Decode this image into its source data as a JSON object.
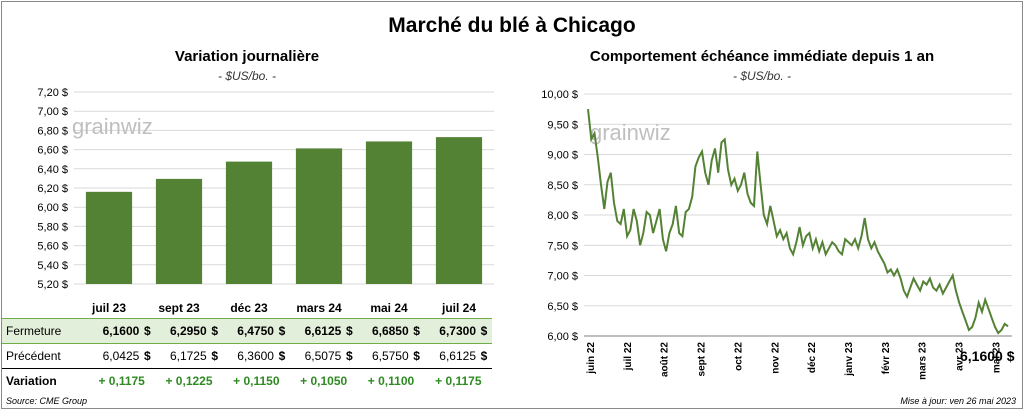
{
  "title": "Marché du blé à Chicago",
  "left": {
    "title": "Variation journalière",
    "subtitle": "- $US/bo. -",
    "watermark": "grainwiz",
    "table": {
      "row_labels": {
        "close": "Fermeture",
        "prev": "Précédent",
        "var": "Variation"
      },
      "currency": "$",
      "columns": [
        {
          "close": "6,1600",
          "prev": "6,0425",
          "var": "+ 0,1175"
        },
        {
          "close": "6,2950",
          "prev": "6,1725",
          "var": "+ 0,1225"
        },
        {
          "close": "6,4750",
          "prev": "6,3600",
          "var": "+ 0,1150"
        },
        {
          "close": "6,6125",
          "prev": "6,5075",
          "var": "+ 0,1050"
        },
        {
          "close": "6,6850",
          "prev": "6,5750",
          "var": "+ 0,1100"
        },
        {
          "close": "6,7300",
          "prev": "6,6125",
          "var": "+ 0,1175"
        }
      ]
    }
  },
  "right": {
    "title": "Comportement  échéance immédiate depuis 1 an",
    "subtitle": "- $US/bo. -",
    "watermark": "grainwiz",
    "last_value_label": "6,1600 $"
  },
  "footer": {
    "source": "Source: CME Group",
    "updated": "Mise à jour: ven 26 mai 2023"
  },
  "colors": {
    "bar": "#548235",
    "line": "#548235",
    "grid": "#d9d9d9",
    "highlight_row": "#e2efda"
  },
  "chart_data": [
    {
      "type": "bar",
      "title": "Variation journalière",
      "subtitle": "- $US/bo. -",
      "categories": [
        "juil 23",
        "sept 23",
        "déc 23",
        "mars 24",
        "mai 24",
        "juil 24"
      ],
      "values": [
        6.16,
        6.295,
        6.475,
        6.6125,
        6.685,
        6.73
      ],
      "ylim": [
        5.2,
        7.2
      ],
      "yticks": [
        "5,20 $",
        "5,40 $",
        "5,60 $",
        "5,80 $",
        "6,00 $",
        "6,20 $",
        "6,40 $",
        "6,60 $",
        "6,80 $",
        "7,00 $",
        "7,20 $"
      ],
      "grid": true
    },
    {
      "type": "line",
      "title": "Comportement  échéance immédiate depuis 1 an",
      "subtitle": "- $US/bo. -",
      "ylim": [
        6.0,
        10.0
      ],
      "yticks": [
        "6,00 $",
        "6,50 $",
        "7,00 $",
        "7,50 $",
        "8,00 $",
        "8,50 $",
        "9,00 $",
        "9,50 $",
        "10,00 $"
      ],
      "xticks": [
        "juin 22",
        "juil 22",
        "août 22",
        "sept 22",
        "oct 22",
        "nov 22",
        "déc 22",
        "janv 23",
        "févr 23",
        "mars 23",
        "avr 23",
        "mai 23"
      ],
      "values": [
        9.75,
        9.25,
        9.35,
        8.95,
        8.5,
        8.1,
        8.55,
        8.7,
        8.2,
        7.9,
        7.85,
        8.1,
        7.65,
        7.75,
        8.1,
        7.9,
        7.5,
        7.7,
        8.05,
        8.0,
        7.7,
        7.9,
        8.1,
        7.6,
        7.4,
        7.7,
        7.85,
        8.15,
        7.7,
        7.65,
        8.05,
        8.1,
        8.3,
        8.8,
        8.95,
        9.05,
        8.7,
        8.5,
        8.9,
        9.1,
        8.7,
        9.2,
        9.25,
        8.75,
        8.5,
        8.6,
        8.4,
        8.5,
        8.7,
        8.35,
        8.2,
        8.15,
        9.05,
        8.5,
        8.0,
        7.85,
        8.15,
        7.9,
        7.65,
        7.75,
        7.6,
        7.7,
        7.45,
        7.35,
        7.55,
        7.8,
        7.5,
        7.65,
        7.7,
        7.45,
        7.6,
        7.4,
        7.55,
        7.35,
        7.45,
        7.55,
        7.5,
        7.4,
        7.35,
        7.6,
        7.55,
        7.5,
        7.6,
        7.45,
        7.65,
        7.95,
        7.6,
        7.45,
        7.55,
        7.4,
        7.3,
        7.2,
        7.05,
        7.1,
        7.0,
        7.1,
        6.95,
        6.75,
        6.65,
        6.8,
        6.95,
        6.85,
        6.75,
        6.9,
        6.85,
        6.95,
        6.8,
        6.75,
        6.85,
        6.7,
        6.8,
        6.9,
        7.0,
        6.75,
        6.55,
        6.4,
        6.25,
        6.1,
        6.15,
        6.3,
        6.55,
        6.4,
        6.6,
        6.45,
        6.3,
        6.15,
        6.05,
        6.1,
        6.2,
        6.16
      ]
    }
  ]
}
